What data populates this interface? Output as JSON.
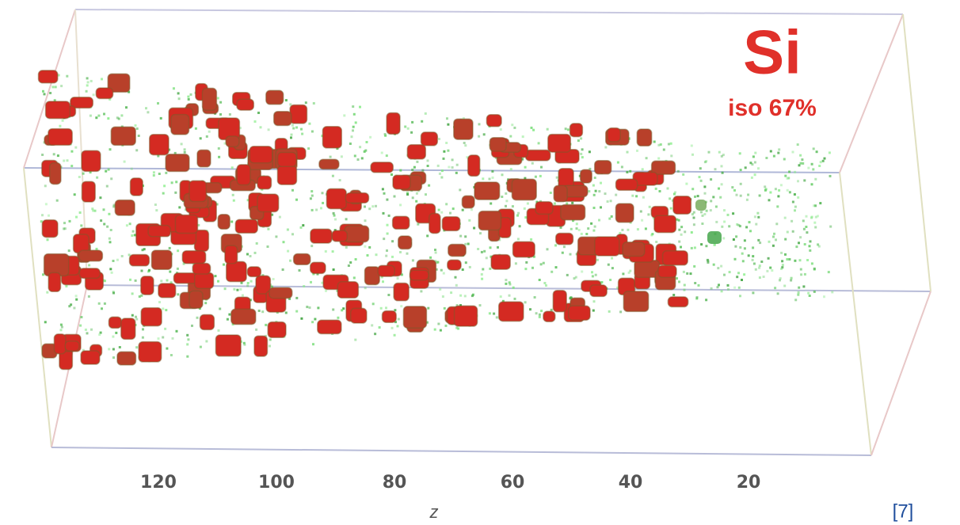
{
  "figure": {
    "element": "Si",
    "iso": "iso 67%",
    "axis": {
      "label": "z",
      "ticks": [
        "120",
        "100",
        "80",
        "60",
        "40",
        "20"
      ]
    },
    "reference": "[7]"
  }
}
